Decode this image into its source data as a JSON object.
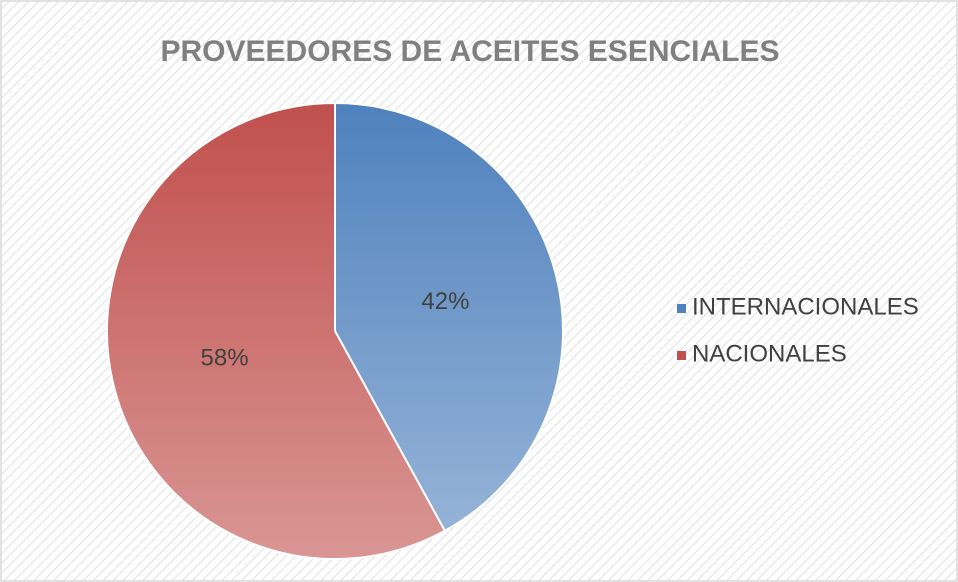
{
  "chart_data": {
    "type": "pie",
    "title": "PROVEEDORES DE ACEITES ESENCIALES",
    "categories": [
      "INTERNACIONALES",
      "NACIONALES"
    ],
    "values": [
      42,
      58
    ],
    "value_labels": [
      "42%",
      "58%"
    ],
    "colors": [
      "#4f81bd",
      "#c0504d"
    ],
    "legend": "right"
  }
}
